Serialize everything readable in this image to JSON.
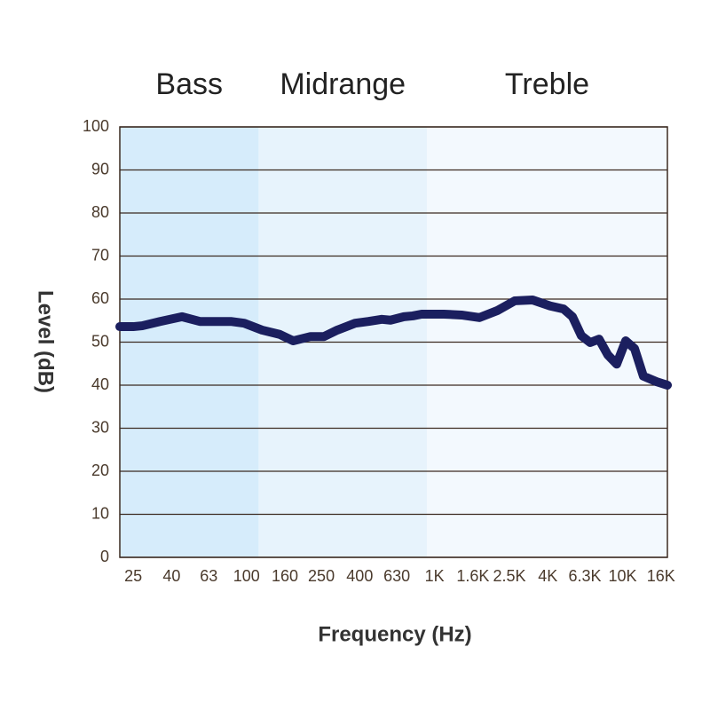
{
  "chart_data": {
    "type": "line",
    "x_label": "Frequency (Hz)",
    "y_label": "Level (dB)",
    "xscale": "log",
    "xlim": [
      21.2,
      17300
    ],
    "ylim": [
      0,
      100
    ],
    "xticks": [
      25,
      40,
      63,
      100,
      160,
      250,
      400,
      630,
      {
        "value": 1000,
        "label": "1K"
      },
      {
        "value": 1600,
        "label": "1.6K"
      },
      {
        "value": 2500,
        "label": "2.5K"
      },
      {
        "value": 4000,
        "label": "4K"
      },
      {
        "value": 6300,
        "label": "6.3K"
      },
      {
        "value": 10000,
        "label": "10K"
      },
      {
        "value": 16000,
        "label": "16K"
      }
    ],
    "yticks": [
      0,
      10,
      20,
      30,
      40,
      50,
      60,
      70,
      80,
      90,
      100
    ],
    "grid": true,
    "regions": [
      {
        "name": "Bass",
        "from": 21.2,
        "to": 116,
        "color": "#d6ecfb"
      },
      {
        "name": "Midrange",
        "from": 116,
        "to": 910,
        "color": "#e7f3fc"
      },
      {
        "name": "Treble",
        "from": 910,
        "to": 17300,
        "color": "#f3f9fe"
      }
    ],
    "x": [
      21.2,
      25,
      27.9,
      34.7,
      45.4,
      56.5,
      70.2,
      82.6,
      97.2,
      121,
      150,
      177,
      219,
      258,
      304,
      378,
      445,
      524,
      583,
      687,
      766,
      853,
      1120,
      1390,
      1730,
      2150,
      2670,
      3320,
      4120,
      4850,
      5410,
      6030,
      6720,
      7490,
      8350,
      9300,
      10380,
      11570,
      12890,
      15170,
      17300
    ],
    "series": [
      {
        "color": "#1b1f5f",
        "values": [
          53.6,
          53.6,
          53.8,
          54.8,
          55.9,
          54.8,
          54.8,
          54.8,
          54.4,
          52.8,
          51.8,
          50.3,
          51.3,
          51.3,
          52.8,
          54.4,
          54.8,
          55.3,
          55.1,
          55.9,
          56.1,
          56.5,
          56.5,
          56.3,
          55.7,
          57.3,
          59.6,
          59.8,
          58.4,
          57.7,
          55.9,
          51.5,
          49.9,
          50.7,
          47.0,
          44.9,
          50.3,
          48.5,
          42.1,
          40.8,
          40.0
        ]
      }
    ]
  }
}
